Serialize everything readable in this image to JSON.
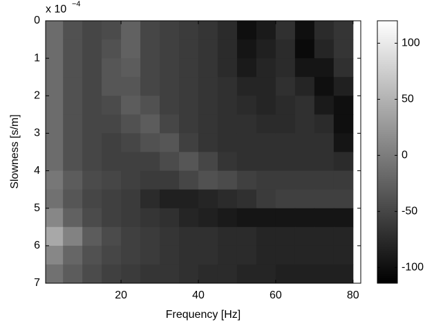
{
  "chart_data": {
    "type": "heatmap",
    "x_label": "Frequency [Hz]",
    "y_label": "Slowness [s/m]",
    "y_scale_label": "x 10",
    "y_scale_exponent": "−4",
    "x": [
      2.5,
      7.5,
      12.5,
      17.5,
      22.5,
      27.5,
      32.5,
      37.5,
      42.5,
      47.5,
      52.5,
      57.5,
      62.5,
      67.5,
      72.5,
      77.5
    ],
    "y": [
      0.25,
      0.75,
      1.25,
      1.75,
      2.25,
      2.75,
      3.25,
      3.75,
      4.25,
      4.75,
      5.25,
      5.75,
      6.25,
      6.75
    ],
    "z": [
      [
        -15,
        -40,
        -50,
        -45,
        -25,
        -50,
        -55,
        -60,
        -65,
        -75,
        -100,
        -90,
        -70,
        -100,
        -75,
        -65
      ],
      [
        -15,
        -40,
        -50,
        -40,
        -25,
        -50,
        -55,
        -60,
        -65,
        -75,
        -95,
        -85,
        -75,
        -105,
        -80,
        -65
      ],
      [
        -15,
        -40,
        -50,
        -35,
        -30,
        -50,
        -55,
        -60,
        -65,
        -75,
        -90,
        -80,
        -75,
        -95,
        -95,
        -70
      ],
      [
        -15,
        -40,
        -50,
        -35,
        -35,
        -50,
        -55,
        -60,
        -65,
        -70,
        -80,
        -80,
        -70,
        -80,
        -100,
        -85
      ],
      [
        -15,
        -40,
        -50,
        -45,
        -30,
        -40,
        -55,
        -60,
        -65,
        -70,
        -75,
        -80,
        -75,
        -70,
        -90,
        -100
      ],
      [
        -15,
        -40,
        -50,
        -50,
        -40,
        -30,
        -50,
        -60,
        -65,
        -70,
        -70,
        -75,
        -75,
        -70,
        -75,
        -100
      ],
      [
        -15,
        -40,
        -50,
        -55,
        -50,
        -40,
        -35,
        -55,
        -65,
        -70,
        -70,
        -70,
        -70,
        -70,
        -70,
        -95
      ],
      [
        -15,
        -40,
        -50,
        -55,
        -55,
        -55,
        -45,
        -35,
        -50,
        -65,
        -70,
        -70,
        -70,
        -70,
        -70,
        -75
      ],
      [
        -5,
        -30,
        -45,
        -50,
        -55,
        -60,
        -60,
        -50,
        -40,
        -45,
        -55,
        -60,
        -60,
        -60,
        -60,
        -60
      ],
      [
        -10,
        -35,
        -50,
        -55,
        -60,
        -75,
        -85,
        -85,
        -80,
        -75,
        -70,
        -60,
        -55,
        -55,
        -55,
        -55
      ],
      [
        10,
        -25,
        -45,
        -55,
        -60,
        -65,
        -70,
        -80,
        -85,
        -90,
        -95,
        -95,
        -95,
        -95,
        -95,
        -95
      ],
      [
        40,
        5,
        -30,
        -45,
        -55,
        -60,
        -65,
        -70,
        -70,
        -75,
        -75,
        -80,
        -80,
        -80,
        -80,
        -80
      ],
      [
        10,
        -20,
        -40,
        -50,
        -55,
        -60,
        -65,
        -70,
        -70,
        -75,
        -75,
        -80,
        -80,
        -80,
        -80,
        -80
      ],
      [
        -10,
        -30,
        -45,
        -55,
        -60,
        -65,
        -65,
        -70,
        -75,
        -75,
        -80,
        -80,
        -85,
        -85,
        -85,
        -85
      ]
    ],
    "xlim": [
      0.5,
      82
    ],
    "xticks": [
      20,
      40,
      60,
      80
    ],
    "ylim": [
      0,
      7
    ],
    "yticks": [
      0,
      1,
      2,
      3,
      4,
      5,
      6,
      7
    ],
    "y_reversed": true,
    "clim": [
      -114,
      120
    ],
    "cticks": [
      -100,
      -50,
      0,
      50,
      100
    ],
    "colormap": "gray"
  }
}
